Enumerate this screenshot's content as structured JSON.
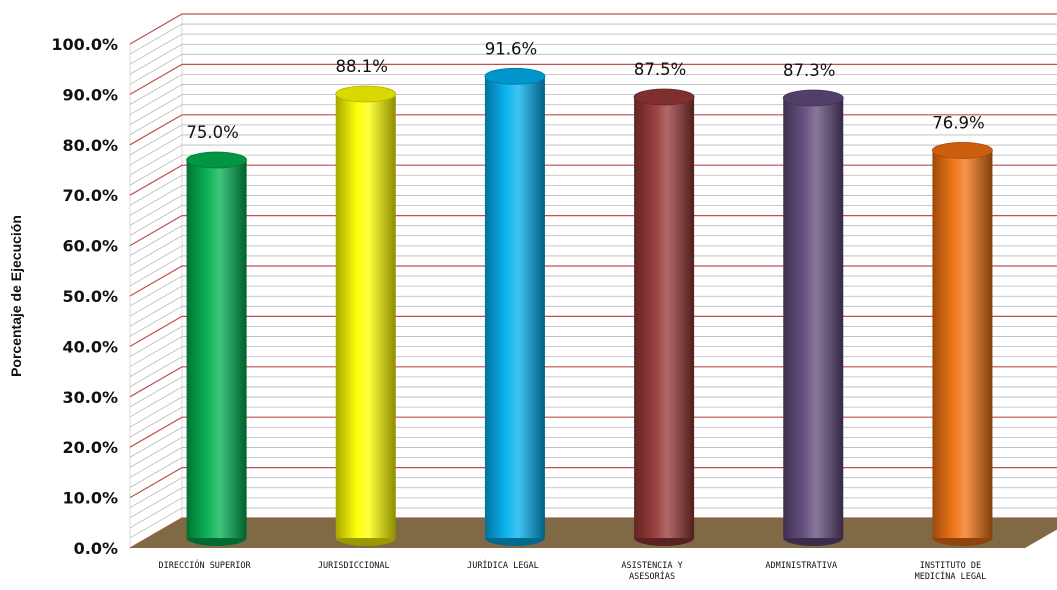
{
  "chart_data": {
    "type": "bar",
    "title": "",
    "xlabel": "",
    "ylabel": "Porcentaje de Ejecución",
    "ylim": [
      0,
      100
    ],
    "y_ticks": [
      "0.0%",
      "10.0%",
      "20.0%",
      "30.0%",
      "40.0%",
      "50.0%",
      "60.0%",
      "70.0%",
      "80.0%",
      "90.0%",
      "100.0%"
    ],
    "categories": [
      [
        "DIRECCIÓN SUPERIOR"
      ],
      [
        "JURISDICCIONAL"
      ],
      [
        "JURÍDICA LEGAL"
      ],
      [
        "ASISTENCIA Y",
        "ASESORÍAS"
      ],
      [
        "ADMINISTRATIVA"
      ],
      [
        "INSTITUTO DE",
        "MEDICÍNA LEGAL"
      ]
    ],
    "values": [
      75.0,
      88.1,
      91.6,
      87.5,
      87.3,
      76.9
    ],
    "data_labels": [
      "75.0%",
      "88.1%",
      "91.6%",
      "87.5%",
      "87.3%",
      "76.9%"
    ],
    "colors": [
      "#00b050",
      "#ffff00",
      "#00b0f0",
      "#953735",
      "#604a7b",
      "#f07010"
    ],
    "grid": true,
    "style": "3d-cylinder",
    "wall_color": "#ffffff",
    "gridline_color": "#c0504d",
    "floor_color": "#7f6a45"
  }
}
